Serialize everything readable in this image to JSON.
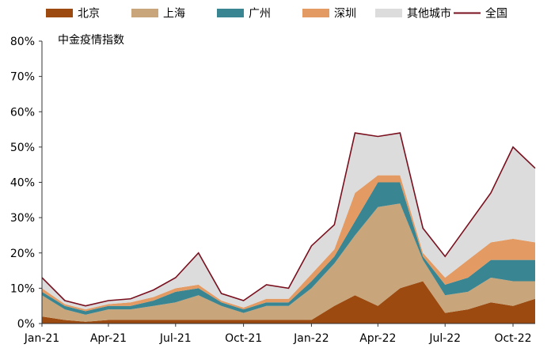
{
  "chart_data": {
    "type": "area",
    "title": "中金疫情指数",
    "xlabel": "",
    "ylabel": "",
    "x_range": [
      "2021-01-01",
      "2022-10-31"
    ],
    "ylim": [
      0,
      80
    ],
    "y_unit": "%",
    "grid": false,
    "legend_position": "top",
    "x_ticks": [
      {
        "date": "2021-01-01",
        "label": "Jan-21"
      },
      {
        "date": "2021-04-01",
        "label": "Apr-21"
      },
      {
        "date": "2021-07-01",
        "label": "Jul-21"
      },
      {
        "date": "2021-10-01",
        "label": "Oct-21"
      },
      {
        "date": "2022-01-01",
        "label": "Jan-22"
      },
      {
        "date": "2022-04-01",
        "label": "Apr-22"
      },
      {
        "date": "2022-07-01",
        "label": "Jul-22"
      },
      {
        "date": "2022-10-01",
        "label": "Oct-22"
      }
    ],
    "y_ticks": [
      {
        "value": 0,
        "label": "0%"
      },
      {
        "value": 10,
        "label": "10%"
      },
      {
        "value": 20,
        "label": "20%"
      },
      {
        "value": 30,
        "label": "30%"
      },
      {
        "value": 40,
        "label": "40%"
      },
      {
        "value": 50,
        "label": "50%"
      },
      {
        "value": 60,
        "label": "60%"
      },
      {
        "value": 70,
        "label": "70%"
      },
      {
        "value": 80,
        "label": "80%"
      }
    ],
    "dates": [
      "2021-01-01",
      "2021-02-01",
      "2021-03-01",
      "2021-04-01",
      "2021-05-01",
      "2021-06-01",
      "2021-07-01",
      "2021-08-01",
      "2021-09-01",
      "2021-10-01",
      "2021-11-01",
      "2021-12-01",
      "2022-01-01",
      "2022-02-01",
      "2022-03-01",
      "2022-04-01",
      "2022-05-01",
      "2022-06-01",
      "2022-07-01",
      "2022-08-01",
      "2022-09-01",
      "2022-10-01",
      "2022-10-31"
    ],
    "series": [
      {
        "name": "北京",
        "kind": "area",
        "color": "#9c4a10",
        "values": [
          2,
          1,
          0.5,
          1,
          1,
          1,
          1,
          1,
          1,
          1,
          1,
          1,
          1,
          5,
          8,
          5,
          10,
          12,
          3,
          4,
          6,
          5,
          7
        ]
      },
      {
        "name": "上海",
        "kind": "area",
        "color": "#c8a57a",
        "values": [
          6,
          3,
          2,
          3,
          3,
          4,
          5,
          7,
          4,
          2,
          4,
          4,
          9,
          12,
          17,
          28,
          24,
          6,
          5,
          5,
          7,
          7,
          5
        ]
      },
      {
        "name": "广州",
        "kind": "area",
        "color": "#3a8592",
        "values": [
          1,
          1,
          1,
          1,
          1,
          1.5,
          3,
          2,
          1,
          1,
          1,
          1,
          2,
          2,
          4,
          7,
          6,
          1,
          3,
          4,
          5,
          6,
          6
        ]
      },
      {
        "name": "深圳",
        "kind": "area",
        "color": "#e39a63",
        "values": [
          1,
          0.5,
          0.5,
          0.5,
          1,
          1,
          1,
          1,
          0.5,
          0.5,
          1,
          1,
          2,
          2,
          8,
          2,
          2,
          1,
          2,
          5,
          5,
          6,
          5
        ]
      },
      {
        "name": "其他城市",
        "kind": "area",
        "color": "#dcdcdc",
        "values": [
          3,
          1,
          1,
          1,
          1,
          2,
          3,
          9,
          2,
          2,
          4,
          3,
          8,
          7,
          17,
          11,
          12,
          7,
          6,
          10,
          14,
          26,
          21
        ]
      },
      {
        "name": "全国",
        "kind": "line",
        "color": "#7a0f1e",
        "values": [
          13,
          6.5,
          5,
          6.5,
          7,
          9.5,
          13,
          20,
          8.5,
          6.5,
          11,
          10,
          22,
          28,
          54,
          53,
          54,
          27,
          19,
          28,
          37,
          50,
          44
        ]
      }
    ]
  }
}
